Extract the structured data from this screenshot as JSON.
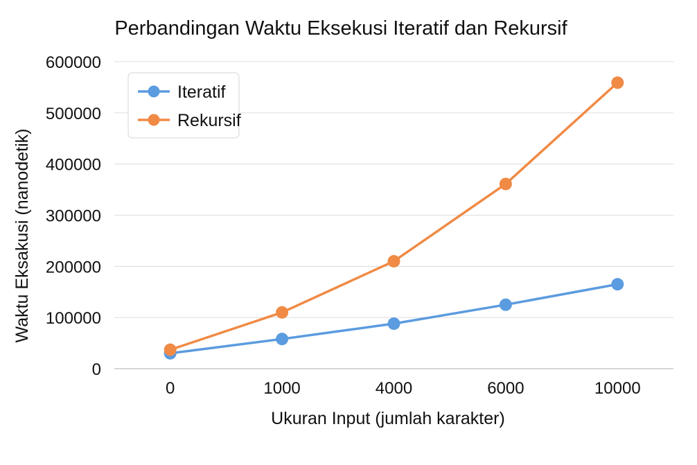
{
  "chart_data": {
    "type": "line",
    "title": "Perbandingan Waktu Eksekusi Iteratif dan Rekursif",
    "xlabel": "Ukuran Input (jumlah karakter)",
    "ylabel": "Waktu Eksakusi (nanodetik)",
    "categories": [
      "0",
      "1000",
      "4000",
      "6000",
      "10000"
    ],
    "ylim": [
      0,
      600000
    ],
    "yticks": [
      0,
      100000,
      200000,
      300000,
      400000,
      500000,
      600000
    ],
    "ytick_labels": [
      "0",
      "100000",
      "200000",
      "300000",
      "400000",
      "500000",
      "600000"
    ],
    "grid": true,
    "legend_position": "top-left",
    "series": [
      {
        "name": "Iteratif",
        "color": "#5b9bdf",
        "values": [
          30000,
          58000,
          88000,
          125000,
          165000
        ]
      },
      {
        "name": "Rekursif",
        "color": "#f08a45",
        "values": [
          37000,
          110000,
          210000,
          361000,
          559000
        ]
      }
    ]
  }
}
